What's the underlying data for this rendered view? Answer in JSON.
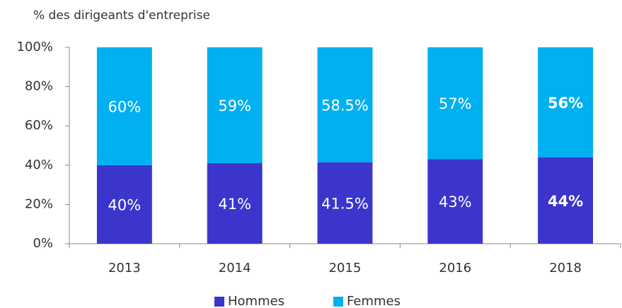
{
  "chart_data": {
    "type": "stacked_bar",
    "y_label": "% des dirigeants d'entreprise",
    "categories": [
      "2013",
      "2014",
      "2015",
      "2016",
      "2018"
    ],
    "series": [
      {
        "name": "Hommes",
        "color": "#3b35cc",
        "values": [
          40,
          41,
          41.5,
          43,
          44
        ],
        "value_labels": [
          "40%",
          "41%",
          "41.5%",
          "43%",
          "44%"
        ]
      },
      {
        "name": "Femmes",
        "color": "#00b0f0",
        "values": [
          60,
          59,
          58.5,
          57,
          56
        ],
        "value_labels": [
          "60%",
          "59%",
          "58.5%",
          "57%",
          "56%"
        ]
      }
    ],
    "ylim": [
      0,
      100
    ],
    "yticks": [
      {
        "value": 0,
        "label": "0%"
      },
      {
        "value": 20,
        "label": "20%"
      },
      {
        "value": 40,
        "label": "40%"
      },
      {
        "value": 60,
        "label": "60%"
      },
      {
        "value": 80,
        "label": "80%"
      },
      {
        "value": 100,
        "label": "100%"
      }
    ],
    "grid": false,
    "legend": "bottom"
  }
}
